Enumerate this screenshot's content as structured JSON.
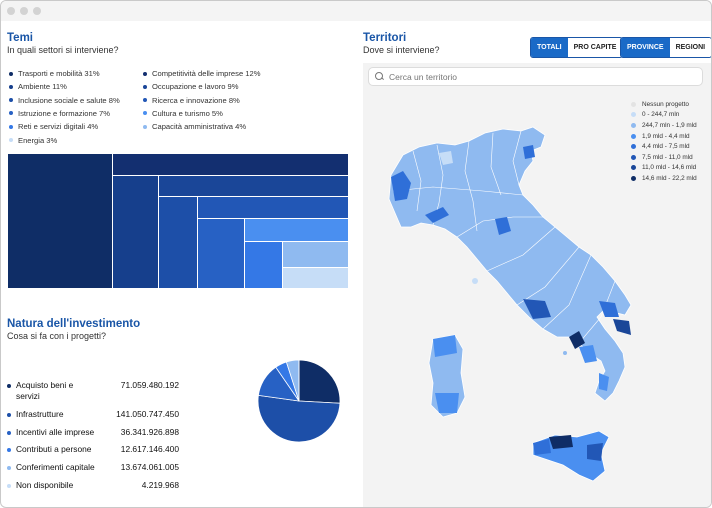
{
  "temi": {
    "title": "Temi",
    "subtitle": "In quali settori si interviene?",
    "legend": [
      {
        "label": "Trasporti e mobilità 31%",
        "color": "#0f2d66"
      },
      {
        "label": "Ambiente 11%",
        "color": "#163f8c"
      },
      {
        "label": "Inclusione sociale e salute 8%",
        "color": "#1d4fa8"
      },
      {
        "label": "Istruzione e formazione 7%",
        "color": "#2761c4"
      },
      {
        "label": "Reti e servizi digitali 4%",
        "color": "#3478e6"
      },
      {
        "label": "Energia 3%",
        "color": "#c6ddf7"
      },
      {
        "label": "Competitività delle imprese 12%",
        "color": "#132f70"
      },
      {
        "label": "Occupazione e lavoro 9%",
        "color": "#1a4698"
      },
      {
        "label": "Ricerca e innovazione 8%",
        "color": "#2257b6"
      },
      {
        "label": "Cultura e turismo 5%",
        "color": "#4a8ff0"
      },
      {
        "label": "Capacità amministrativa 4%",
        "color": "#8fbaf0"
      }
    ]
  },
  "investimento": {
    "title": "Natura dell'investimento",
    "subtitle": "Cosa si fa con i progetti?",
    "rows": [
      {
        "label": "Acquisto beni e servizi",
        "value": "71.059.480.192",
        "color": "#0f2d66"
      },
      {
        "label": "Infrastrutture",
        "value": "141.050.747.450",
        "color": "#1d4fa8"
      },
      {
        "label": "Incentivi alle imprese",
        "value": "36.341.926.898",
        "color": "#2761c4"
      },
      {
        "label": "Contributi a persone",
        "value": "12.617.146.400",
        "color": "#3478e6"
      },
      {
        "label": "Conferimenti capitale",
        "value": "13.674.061.005",
        "color": "#8fbaf0"
      },
      {
        "label": "Non disponibile",
        "value": "4.219.968",
        "color": "#c6ddf7"
      }
    ]
  },
  "territori": {
    "title": "Territori",
    "subtitle": "Dove si interviene?",
    "toggle_totali": "TOTALI",
    "toggle_procapite": "PRO CAPITE",
    "toggle_province": "PROVINCE",
    "toggle_regioni": "REGIONI",
    "search_placeholder": "Cerca un territorio",
    "legend": [
      {
        "label": "Nessun progetto",
        "color": "#e3e3e3"
      },
      {
        "label": "0 - 244,7 mln",
        "color": "#c6ddf7"
      },
      {
        "label": "244,7 mln - 1,9 mld",
        "color": "#8fbaf0"
      },
      {
        "label": "1,9 mld - 4,4 mld",
        "color": "#4a8ff0"
      },
      {
        "label": "4,4 mld - 7,5 mld",
        "color": "#2f6fd8"
      },
      {
        "label": "7,5 mld - 11,0 mld",
        "color": "#2257b6"
      },
      {
        "label": "11,0 mld - 14,6 mld",
        "color": "#1a4698"
      },
      {
        "label": "14,6 mld - 22,2 mld",
        "color": "#0f2d66"
      }
    ]
  },
  "chart_data": [
    {
      "type": "treemap",
      "categories": [
        "Trasporti e mobilità",
        "Competitività delle imprese",
        "Ambiente",
        "Occupazione e lavoro",
        "Inclusione sociale e salute",
        "Ricerca e innovazione",
        "Istruzione e formazione",
        "Cultura e turismo",
        "Reti e servizi digitali",
        "Capacità amministrativa",
        "Energia"
      ],
      "values": [
        31,
        12,
        11,
        9,
        8,
        8,
        7,
        5,
        4,
        4,
        3
      ]
    },
    {
      "type": "pie",
      "categories": [
        "Acquisto beni e servizi",
        "Infrastrutture",
        "Incentivi alle imprese",
        "Contributi a persone",
        "Conferimenti capitale",
        "Non disponibile"
      ],
      "values": [
        71059480192,
        141050747450,
        36341926898,
        12617146400,
        13674061005,
        4219968
      ],
      "colors": [
        "#0f2d66",
        "#1d4fa8",
        "#2761c4",
        "#3478e6",
        "#8fbaf0",
        "#c6ddf7"
      ]
    }
  ]
}
